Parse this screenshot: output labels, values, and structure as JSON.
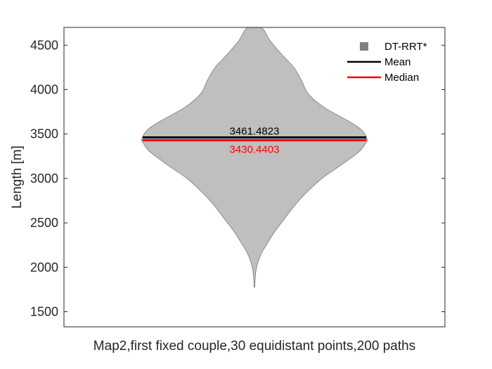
{
  "chart_data": {
    "type": "violin",
    "xlabel": "Map2,first fixed couple,30 equidistant points,200 paths",
    "ylabel": "Length [m]",
    "ylim": [
      1330,
      4700
    ],
    "yticks": [
      1500,
      2000,
      2500,
      3000,
      3500,
      4000,
      4500
    ],
    "ytick_labels": [
      "1500",
      "2000",
      "2500",
      "3000",
      "3500",
      "4000",
      "4500"
    ],
    "grid": false,
    "legend_position": "top-right",
    "legend": [
      {
        "label": "DT-RRT*",
        "symbol": "square",
        "color": "#808080"
      },
      {
        "label": "Mean",
        "symbol": "line",
        "color": "#000000"
      },
      {
        "label": "Median",
        "symbol": "line",
        "color": "#ff0000"
      }
    ],
    "series": [
      {
        "name": "DT-RRT*",
        "fill_color": "#bfbfbf",
        "edge_color": "#7a7a7a",
        "density": [
          {
            "y": 1775,
            "w": 0.003
          },
          {
            "y": 1850,
            "w": 0.006
          },
          {
            "y": 1950,
            "w": 0.012
          },
          {
            "y": 2050,
            "w": 0.03
          },
          {
            "y": 2150,
            "w": 0.06
          },
          {
            "y": 2250,
            "w": 0.105
          },
          {
            "y": 2400,
            "w": 0.18
          },
          {
            "y": 2550,
            "w": 0.27
          },
          {
            "y": 2700,
            "w": 0.36
          },
          {
            "y": 2850,
            "w": 0.47
          },
          {
            "y": 3000,
            "w": 0.6
          },
          {
            "y": 3150,
            "w": 0.77
          },
          {
            "y": 3300,
            "w": 0.93
          },
          {
            "y": 3400,
            "w": 0.99
          },
          {
            "y": 3450,
            "w": 1.0
          },
          {
            "y": 3550,
            "w": 0.95
          },
          {
            "y": 3650,
            "w": 0.83
          },
          {
            "y": 3800,
            "w": 0.62
          },
          {
            "y": 3950,
            "w": 0.48
          },
          {
            "y": 4100,
            "w": 0.42
          },
          {
            "y": 4250,
            "w": 0.35
          },
          {
            "y": 4400,
            "w": 0.24
          },
          {
            "y": 4550,
            "w": 0.14
          },
          {
            "y": 4700,
            "w": 0.06
          }
        ],
        "mean": 3461.4823,
        "median": 3430.4403,
        "mean_label": "3461.4823",
        "median_label": "3430.4403",
        "mean_color": "#000000",
        "median_color": "#ff0000"
      }
    ]
  }
}
